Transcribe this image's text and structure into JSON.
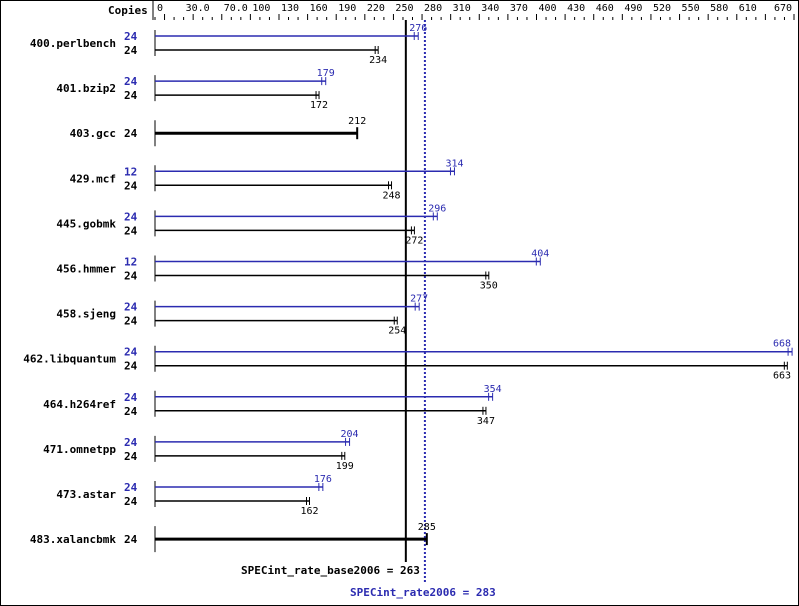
{
  "chart_data": {
    "type": "bar",
    "orientation": "horizontal",
    "header_label": "Copies",
    "xlim": [
      0,
      670
    ],
    "tick_labels": [
      "0",
      "30.0",
      "70.0",
      "100",
      "130",
      "160",
      "190",
      "220",
      "250",
      "280",
      "310",
      "340",
      "370",
      "400",
      "430",
      "460",
      "490",
      "520",
      "550",
      "580",
      "610",
      "670"
    ],
    "tick_values": [
      0,
      30,
      70,
      100,
      130,
      160,
      190,
      220,
      250,
      280,
      310,
      340,
      370,
      400,
      430,
      460,
      490,
      520,
      550,
      580,
      610,
      670
    ],
    "colors": {
      "base": "#000000",
      "peak": "#2b2bb0"
    },
    "benchmarks": [
      {
        "name": "400.perlbench",
        "peak_copies": "24",
        "peak": 276,
        "base_copies": "24",
        "base": 234
      },
      {
        "name": "401.bzip2",
        "peak_copies": "24",
        "peak": 179,
        "base_copies": "24",
        "base": 172
      },
      {
        "name": "403.gcc",
        "base_copies": "24",
        "base": 212,
        "combined": true
      },
      {
        "name": "429.mcf",
        "peak_copies": "12",
        "peak": 314,
        "base_copies": "24",
        "base": 248
      },
      {
        "name": "445.gobmk",
        "peak_copies": "24",
        "peak": 296,
        "base_copies": "24",
        "base": 272
      },
      {
        "name": "456.hmmer",
        "peak_copies": "12",
        "peak": 404,
        "base_copies": "24",
        "base": 350
      },
      {
        "name": "458.sjeng",
        "peak_copies": "24",
        "peak": 277,
        "base_copies": "24",
        "base": 254
      },
      {
        "name": "462.libquantum",
        "peak_copies": "24",
        "peak": 668,
        "base_copies": "24",
        "base": 663
      },
      {
        "name": "464.h264ref",
        "peak_copies": "24",
        "peak": 354,
        "base_copies": "24",
        "base": 347
      },
      {
        "name": "471.omnetpp",
        "peak_copies": "24",
        "peak": 204,
        "base_copies": "24",
        "base": 199
      },
      {
        "name": "473.astar",
        "peak_copies": "24",
        "peak": 176,
        "base_copies": "24",
        "base": 162
      },
      {
        "name": "483.xalancbmk",
        "base_copies": "24",
        "base": 285,
        "combined": true
      }
    ],
    "summary": {
      "base_label": "SPECint_rate_base2006 = 263",
      "base_value": 263,
      "peak_label": "SPECint_rate2006 = 283",
      "peak_value": 283
    }
  }
}
